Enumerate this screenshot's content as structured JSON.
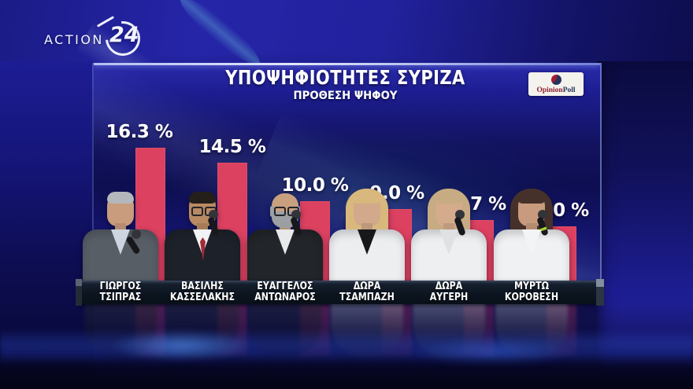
{
  "channel": {
    "brand_action": "ACTION",
    "brand_24": "24"
  },
  "header": {
    "title": "ΥΠΟΨΗΦΙΟΤΗΤΕΣ ΣΥΡΙΖΑ",
    "subtitle": "ΠΡΟΘΕΣΗ ΨΗΦΟΥ"
  },
  "pollster": {
    "opinion": "Opinion",
    "poll": "Poll"
  },
  "candidates": [
    {
      "first": "ΓΙΩΡΓΟΣ",
      "last": "ΤΣΙΠΡΑΣ",
      "value": 16.3,
      "value_label": "16.3 %"
    },
    {
      "first": "ΒΑΣΙΛΗΣ",
      "last": "ΚΑΣΣΕΛΑΚΗΣ",
      "value": 14.5,
      "value_label": "14.5 %"
    },
    {
      "first": "ΕΥΑΓΓΕΛΟΣ",
      "last": "ΑΝΤΩΝΑΡΟΣ",
      "value": 10.0,
      "value_label": "10.0 %"
    },
    {
      "first": "ΔΩΡΑ",
      "last": "ΤΣΑΜΠΑΖΗ",
      "value": 9.0,
      "value_label": "9.0 %"
    },
    {
      "first": "ΔΩΡΑ",
      "last": "ΑΥΓΕΡΗ",
      "value": 7.7,
      "value_label": "7.7 %"
    },
    {
      "first": "ΜΥΡΤΩ",
      "last": "ΚΟΡΟΒΕΣΗ",
      "value": 7.0,
      "value_label": "7.0 %"
    }
  ],
  "chart_data": {
    "type": "bar",
    "title": "ΥΠΟΨΗΦΙΟΤΗΤΕΣ ΣΥΡΙΖΑ",
    "subtitle": "ΠΡΟΘΕΣΗ ΨΗΦΟΥ",
    "source": "OpinionPoll",
    "unit": "%",
    "categories": [
      "ΓΙΩΡΓΟΣ ΤΣΙΠΡΑΣ",
      "ΒΑΣΙΛΗΣ ΚΑΣΣΕΛΑΚΗΣ",
      "ΕΥΑΓΓΕΛΟΣ ΑΝΤΩΝΑΡΟΣ",
      "ΔΩΡΑ ΤΣΑΜΠΑΖΗ",
      "ΔΩΡΑ ΑΥΓΕΡΗ",
      "ΜΥΡΤΩ ΚΟΡΟΒΕΣΗ"
    ],
    "values": [
      16.3,
      14.5,
      10.0,
      9.0,
      7.7,
      7.0
    ],
    "value_labels": [
      "16.3 %",
      "14.5 %",
      "10.0 %",
      "9.0 %",
      "7.7 %",
      "7.0 %"
    ],
    "bar_color": "#dd4160",
    "axis": "none",
    "gridlines": false,
    "legend": "none",
    "value_labels_shown": true
  },
  "colors": {
    "bar": "#dd4160",
    "backdrop_blue": "#2323a4",
    "name_strip": "#0c1520",
    "text": "#ffffff"
  }
}
